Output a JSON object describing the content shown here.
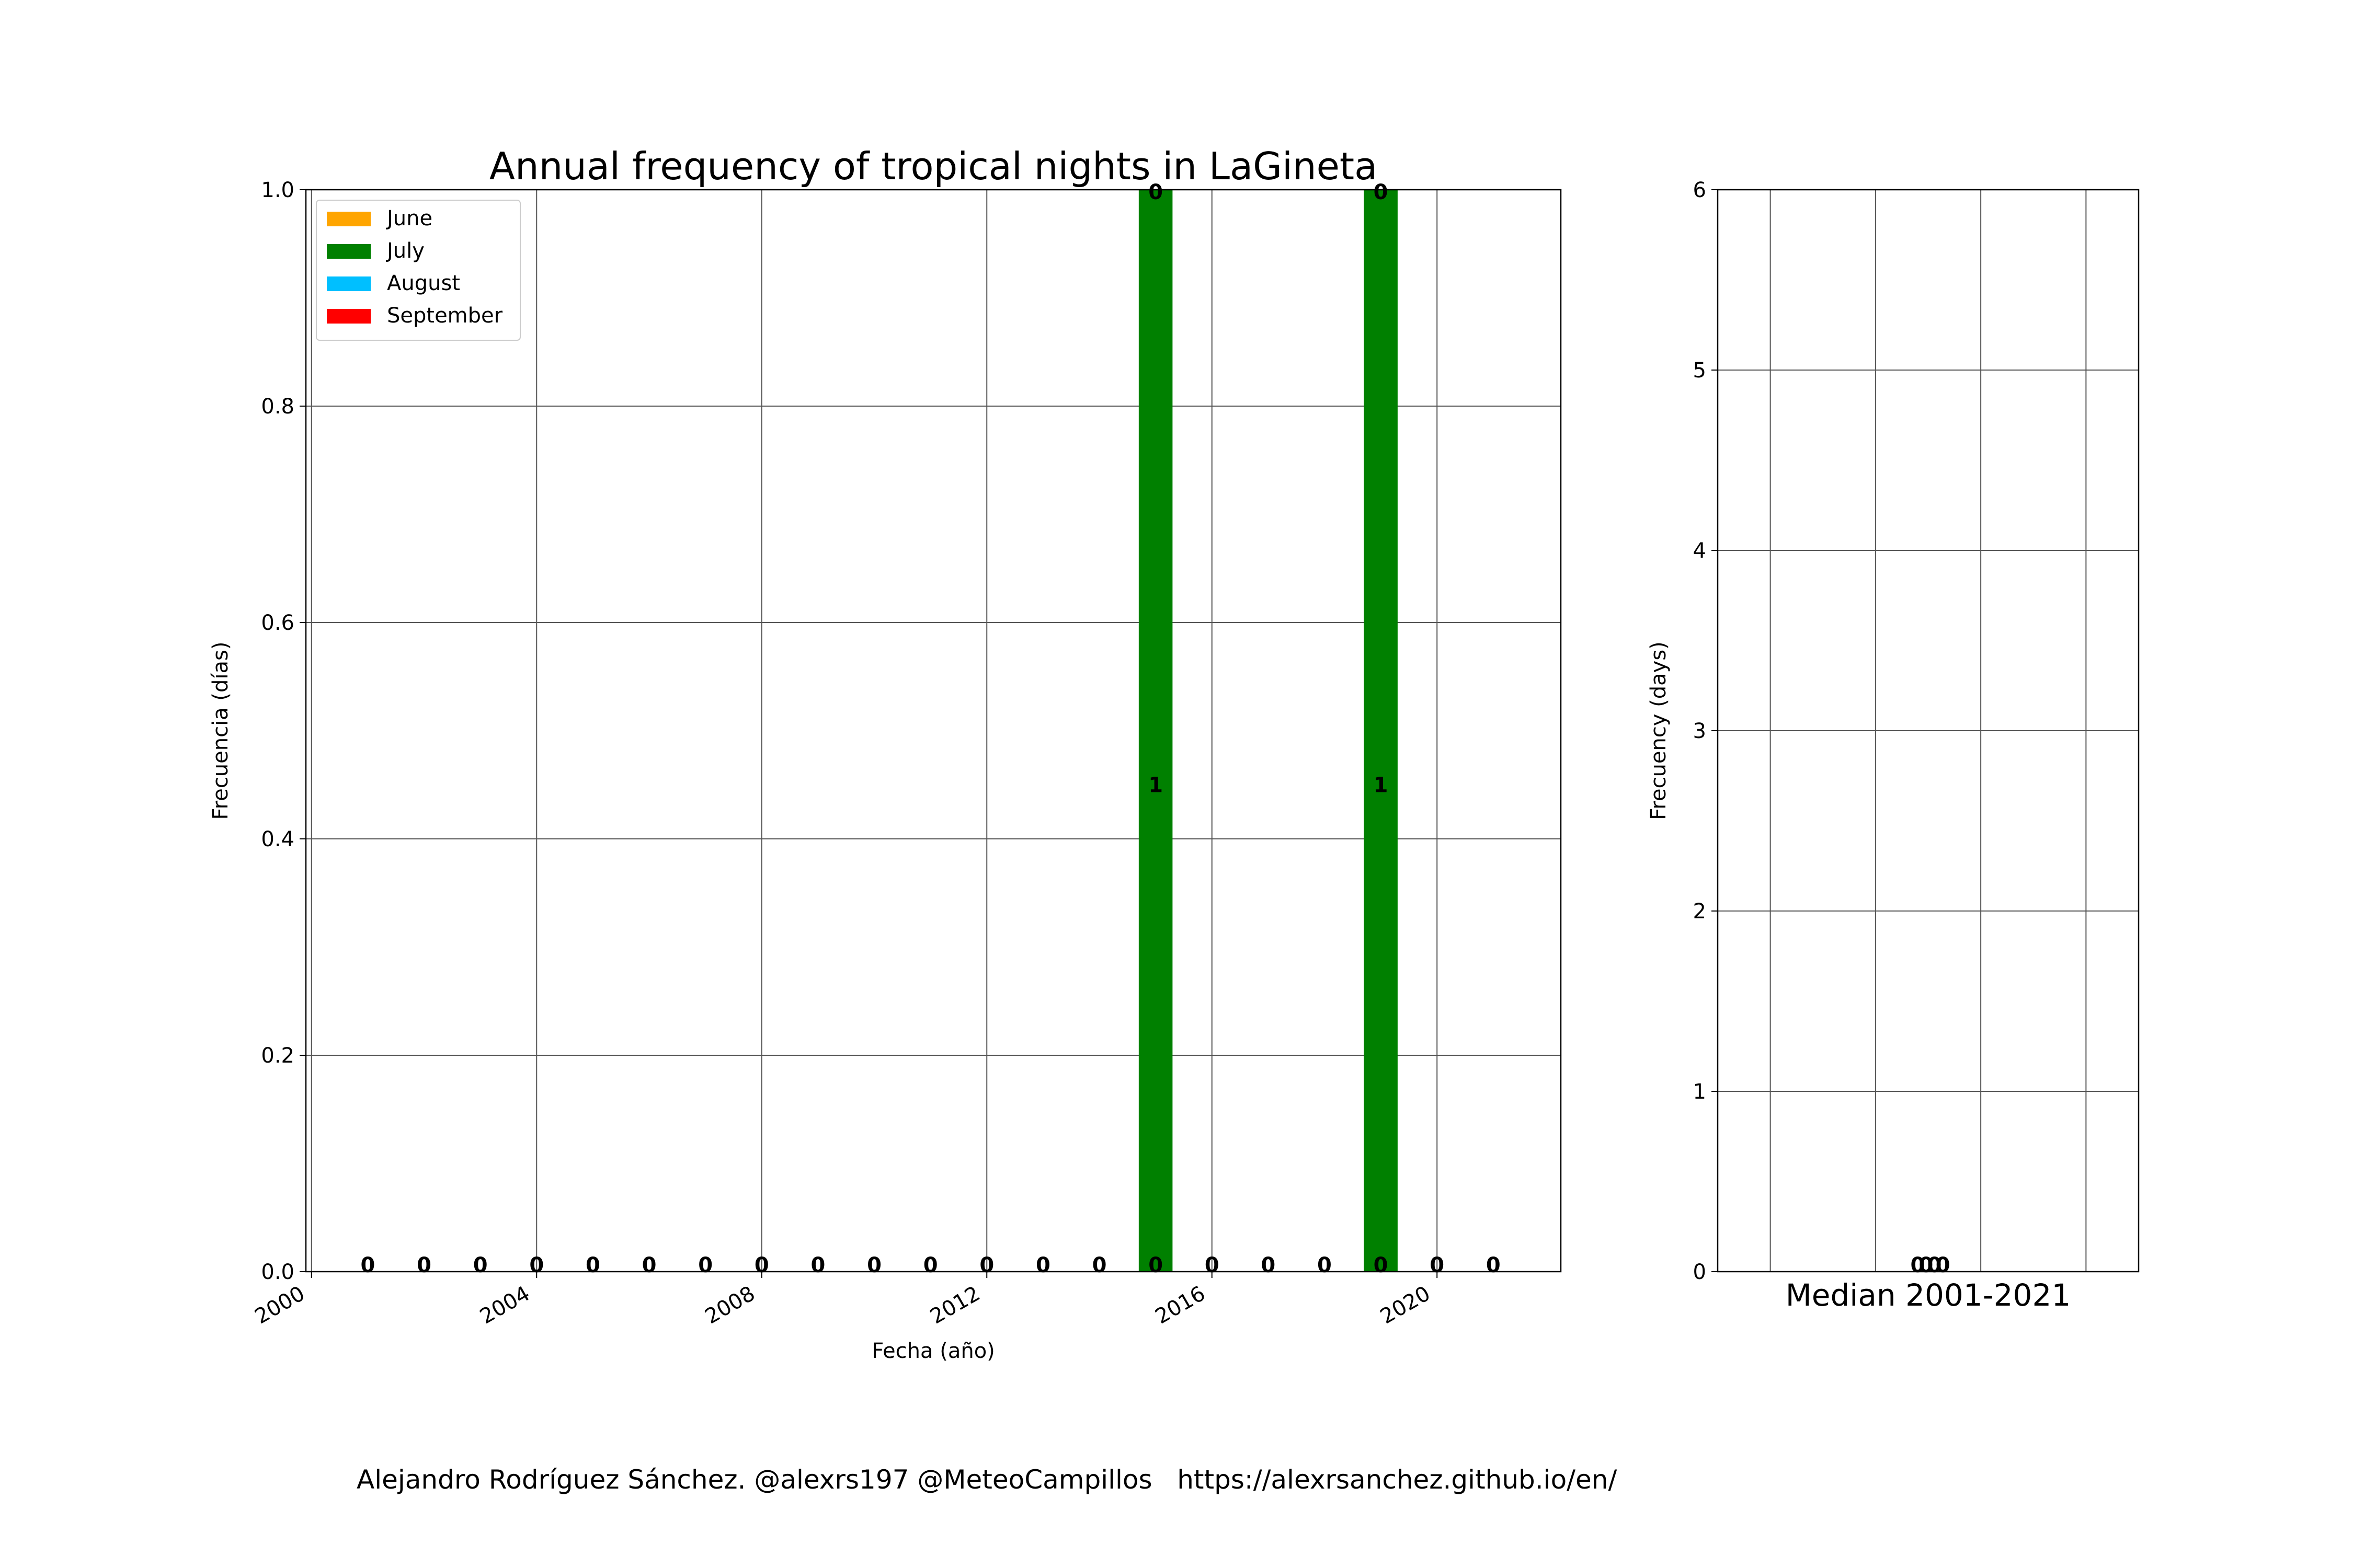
{
  "chart_data": [
    {
      "type": "bar",
      "stacked": true,
      "title": "Annual frequency of tropical nights in LaGineta",
      "xlabel": "Fecha (año)",
      "ylabel": "Frecuencia (días)",
      "xlim": [
        1999.9,
        2022.2
      ],
      "ylim": [
        0,
        1.0
      ],
      "xticks": [
        2000,
        2004,
        2008,
        2012,
        2016,
        2020
      ],
      "yticks": [
        0.0,
        0.2,
        0.4,
        0.6,
        0.8,
        1.0
      ],
      "grid": true,
      "legend_position": "top-left",
      "categories": [
        2001,
        2002,
        2003,
        2004,
        2005,
        2006,
        2007,
        2008,
        2009,
        2010,
        2011,
        2012,
        2013,
        2014,
        2015,
        2016,
        2017,
        2018,
        2019,
        2020,
        2021
      ],
      "series": [
        {
          "name": "June",
          "color": "#ffa500",
          "values": [
            0,
            0,
            0,
            0,
            0,
            0,
            0,
            0,
            0,
            0,
            0,
            0,
            0,
            0,
            0,
            0,
            0,
            0,
            0,
            0,
            0
          ]
        },
        {
          "name": "July",
          "color": "#008000",
          "values": [
            0,
            0,
            0,
            0,
            0,
            0,
            0,
            0,
            0,
            0,
            0,
            0,
            0,
            0,
            1,
            0,
            0,
            0,
            1,
            0,
            0
          ]
        },
        {
          "name": "August",
          "color": "#00bfff",
          "values": [
            0,
            0,
            0,
            0,
            0,
            0,
            0,
            0,
            0,
            0,
            0,
            0,
            0,
            0,
            0,
            0,
            0,
            0,
            0,
            0,
            0
          ]
        },
        {
          "name": "September",
          "color": "#ff0000",
          "values": [
            0,
            0,
            0,
            0,
            0,
            0,
            0,
            0,
            0,
            0,
            0,
            0,
            0,
            0,
            0,
            0,
            0,
            0,
            0,
            0,
            0
          ]
        }
      ],
      "bar_labels": [
        {
          "x": 2001,
          "y": 0,
          "text": "0"
        },
        {
          "x": 2002,
          "y": 0,
          "text": "0"
        },
        {
          "x": 2003,
          "y": 0,
          "text": "0"
        },
        {
          "x": 2004,
          "y": 0,
          "text": "0"
        },
        {
          "x": 2005,
          "y": 0,
          "text": "0"
        },
        {
          "x": 2006,
          "y": 0,
          "text": "0"
        },
        {
          "x": 2007,
          "y": 0,
          "text": "0"
        },
        {
          "x": 2008,
          "y": 0,
          "text": "0"
        },
        {
          "x": 2009,
          "y": 0,
          "text": "0"
        },
        {
          "x": 2010,
          "y": 0,
          "text": "0"
        },
        {
          "x": 2011,
          "y": 0,
          "text": "0"
        },
        {
          "x": 2012,
          "y": 0,
          "text": "0"
        },
        {
          "x": 2013,
          "y": 0,
          "text": "0"
        },
        {
          "x": 2014,
          "y": 0,
          "text": "0"
        },
        {
          "x": 2015,
          "y": 0,
          "text": "0"
        },
        {
          "x": 2015,
          "y": 0.45,
          "text": "1"
        },
        {
          "x": 2015,
          "y": 1.0,
          "text": "0"
        },
        {
          "x": 2016,
          "y": 0,
          "text": "0"
        },
        {
          "x": 2017,
          "y": 0,
          "text": "0"
        },
        {
          "x": 2018,
          "y": 0,
          "text": "0"
        },
        {
          "x": 2019,
          "y": 0,
          "text": "0"
        },
        {
          "x": 2019,
          "y": 0.45,
          "text": "1"
        },
        {
          "x": 2019,
          "y": 1.0,
          "text": "0"
        },
        {
          "x": 2020,
          "y": 0,
          "text": "0"
        },
        {
          "x": 2021,
          "y": 0,
          "text": "0"
        }
      ]
    },
    {
      "type": "bar",
      "stacked": true,
      "title": "Median 2001-2021",
      "ylabel": "Frecuency (days)",
      "xlim": [
        0,
        4
      ],
      "ylim": [
        0,
        6
      ],
      "xgrid": [
        0.5,
        1.5,
        2.5,
        3.5
      ],
      "yticks": [
        0,
        1,
        2,
        3,
        4,
        5,
        6
      ],
      "grid": true,
      "categories": [
        "June",
        "July",
        "August",
        "September"
      ],
      "values": [
        0,
        0,
        0,
        0
      ],
      "bar_labels": [
        {
          "x": 1.9,
          "y": 0,
          "text": "0"
        },
        {
          "x": 1.98,
          "y": 0,
          "text": "0"
        },
        {
          "x": 2.06,
          "y": 0,
          "text": "0"
        },
        {
          "x": 2.14,
          "y": 0,
          "text": "0"
        }
      ]
    }
  ],
  "footer": {
    "credit": "Alejandro Rodríguez Sánchez. @alexrs197 @MeteoCampillos   https://alexrsanchez.github.io/en/"
  }
}
